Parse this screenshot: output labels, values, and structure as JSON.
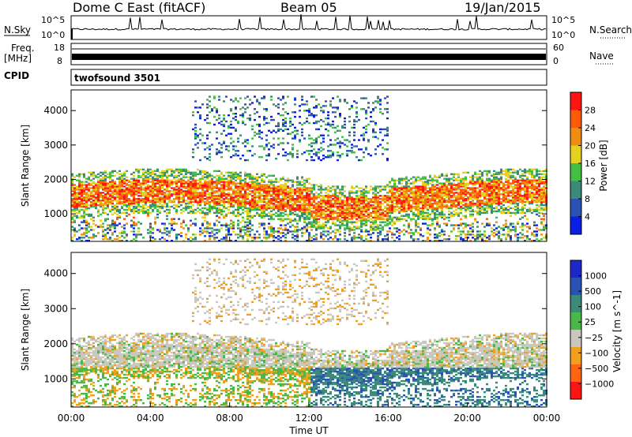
{
  "header": {
    "station": "Dome C East (fitACF)",
    "beam": "Beam 05",
    "date": "19/Jan/2015"
  },
  "top_panels": {
    "nsky_label": "N.Sky",
    "nsky_ticks": [
      "10^5",
      "10^0"
    ],
    "nsearch_label": "N.Search",
    "nsearch_ticks": [
      "10^5",
      "10^0"
    ],
    "freq_label": "Freq.",
    "freq_unit": "[MHz]",
    "freq_ticks": [
      "18",
      "8"
    ],
    "nave_label": "Nave",
    "nave_ticks": [
      "60",
      "0"
    ],
    "cpid_label": "CPID",
    "cpid_value": "twofsound 3501"
  },
  "colors": {
    "power_scale": [
      "#0a1ee6",
      "#2a52b4",
      "#3c8a7a",
      "#43c043",
      "#e6d21e",
      "#f08c14",
      "#ff5a0a",
      "#ff1414"
    ],
    "velocity_scale": [
      "#1e28c8",
      "#2a52b4",
      "#3c8a7a",
      "#48b848",
      "#c8c8c0",
      "#f0a01e",
      "#ff6410",
      "#ff1414"
    ]
  },
  "chart_data": [
    {
      "type": "heatmap",
      "name": "power",
      "xlabel": "",
      "ylabel": "Slant Range [km]",
      "x_ticks": [
        "00:00",
        "04:00",
        "08:00",
        "12:00",
        "16:00",
        "20:00",
        "00:00"
      ],
      "y_ticks": [
        1000,
        2000,
        3000,
        4000
      ],
      "ylim": [
        200,
        4600
      ],
      "xlim_hours": [
        0,
        24
      ],
      "colorbar_label": "Power [dB]",
      "colorbar_ticks": [
        "4",
        "8",
        "12",
        "16",
        "20",
        "24",
        "28"
      ]
    },
    {
      "type": "heatmap",
      "name": "velocity",
      "xlabel": "Time UT",
      "ylabel": "Slant Range [km]",
      "x_ticks": [
        "00:00",
        "04:00",
        "08:00",
        "12:00",
        "16:00",
        "20:00",
        "00:00"
      ],
      "y_ticks": [
        1000,
        2000,
        3000,
        4000
      ],
      "ylim": [
        200,
        4600
      ],
      "xlim_hours": [
        0,
        24
      ],
      "colorbar_label": "Velocity [m s^-1]",
      "colorbar_ticks": [
        "1000",
        "500",
        "100",
        "25",
        "−25",
        "−100",
        "−500",
        "−1000"
      ]
    }
  ]
}
